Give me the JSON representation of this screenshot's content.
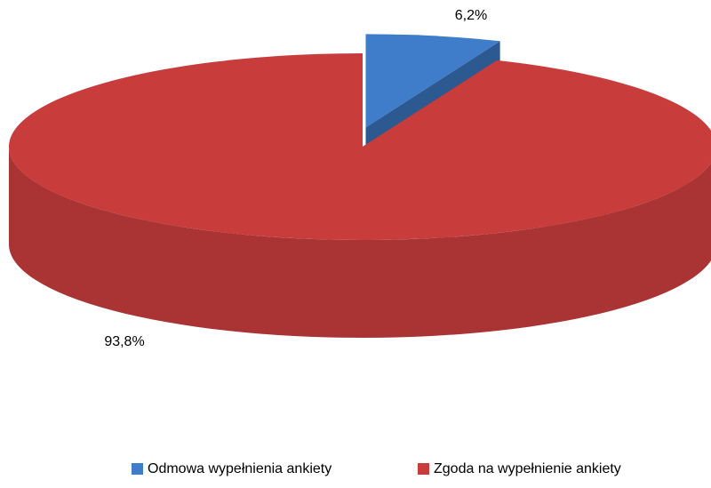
{
  "chart_data": {
    "type": "pie3d",
    "categories": [
      "Odmowa wypełnienia ankiety",
      "Zgoda na wypełnienie ankiety"
    ],
    "values": [
      6.2,
      93.8
    ],
    "value_labels": [
      "6,2%",
      "93,8%"
    ],
    "colors": [
      "#3f7cc9",
      "#c83c3c"
    ],
    "legend": "bottom"
  }
}
